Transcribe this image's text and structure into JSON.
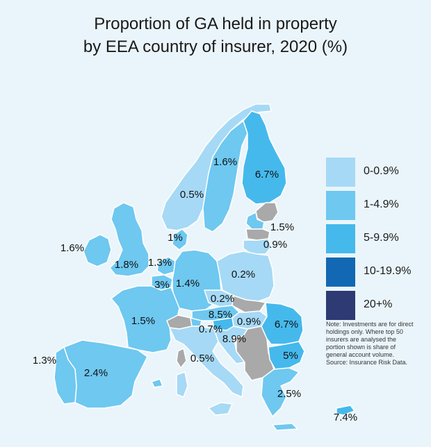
{
  "title": {
    "line1": "Proportion of GA held in property",
    "line2": "by EEA country of insurer, 2020 (%)"
  },
  "colors": {
    "background": "#eaf5fb",
    "no_data": "#a9a9a9",
    "border": "#ffffff"
  },
  "legend": [
    {
      "label": "0-0.9%",
      "color": "#a6d9f5"
    },
    {
      "label": "1-4.9%",
      "color": "#6ec8f0"
    },
    {
      "label": "5-9.9%",
      "color": "#45b9ec"
    },
    {
      "label": "10-19.9%",
      "color": "#1268b3"
    },
    {
      "label": "20+%",
      "color": "#2d3a73"
    }
  ],
  "values": {
    "ireland": "1.6%",
    "uk": "1.8%",
    "portugal": "1.3%",
    "spain": "2.4%",
    "france": "1.5%",
    "belgium": "3%",
    "netherlands": "1.3%",
    "denmark": "1%",
    "norway": "0.5%",
    "sweden": "1.6%",
    "finland": "6.7%",
    "estonia": "1.5%",
    "lithuania": "0.9%",
    "poland": "0.2%",
    "germany": "1.4%",
    "czechia": "0.2%",
    "austria": "8.5%",
    "liechtenstein": "0.7%",
    "slovenia": "8.9%",
    "hungary": "0.9%",
    "romania": "6.7%",
    "bulgaria": "5%",
    "italy": "0.5%",
    "greece": "2.5%",
    "cyprus": "7.4%"
  },
  "note": [
    "Note: Investments are for direct",
    "holdings only. Where top 50",
    "insurers are analysed the",
    "portion shown is share of",
    "general account volume.",
    "Source: Insurance Risk Data."
  ]
}
